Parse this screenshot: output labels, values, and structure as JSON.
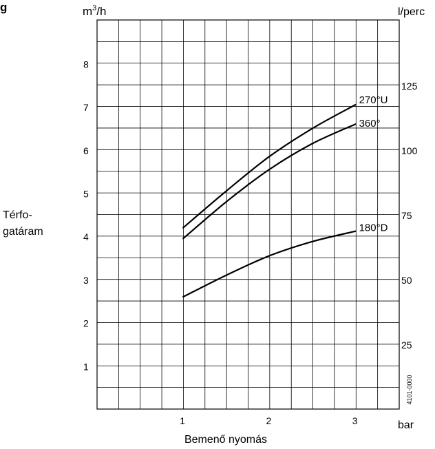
{
  "chart_data": {
    "type": "line",
    "header_fragment": "g",
    "units": {
      "left_base": "m",
      "left_sup": "3",
      "left_rest": "/h",
      "right": "l/perc",
      "x": "bar"
    },
    "xlabel": "Bemenő nyomás",
    "ylabel_lines": [
      "Térfo-",
      "gatáram"
    ],
    "x_ticks": [
      1,
      2,
      3
    ],
    "y_ticks_left": [
      1,
      2,
      3,
      4,
      5,
      6,
      7,
      8
    ],
    "y_ticks_right": [
      25,
      50,
      75,
      100,
      125
    ],
    "xlim": [
      0,
      3.6
    ],
    "ylim": [
      0,
      9
    ],
    "right_scale_factor": 16.6667,
    "code": "4101-0000",
    "series": [
      {
        "name": "270°U",
        "x": [
          1.0,
          1.5,
          2.0,
          2.5,
          3.0
        ],
        "y": [
          4.2,
          5.05,
          5.85,
          6.5,
          7.05
        ]
      },
      {
        "name": "360°",
        "x": [
          1.0,
          1.5,
          2.0,
          2.5,
          3.0
        ],
        "y": [
          3.95,
          4.8,
          5.55,
          6.15,
          6.6
        ]
      },
      {
        "name": "180°D",
        "x": [
          1.0,
          1.5,
          2.0,
          2.5,
          3.0
        ],
        "y": [
          2.6,
          3.1,
          3.55,
          3.88,
          4.12
        ]
      }
    ]
  }
}
